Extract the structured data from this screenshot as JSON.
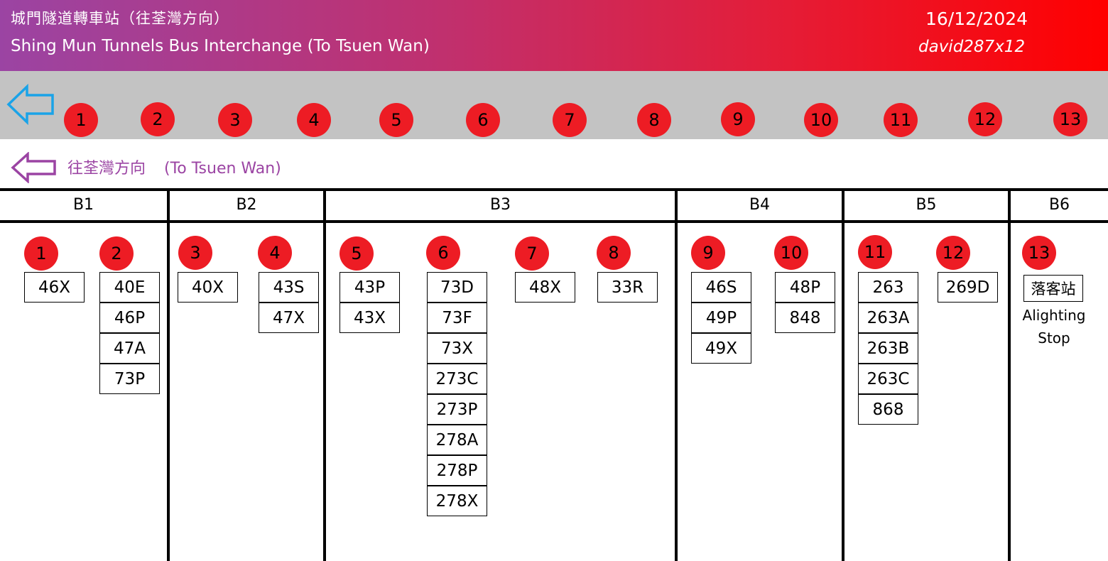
{
  "header": {
    "title_zh": "城門隧道轉車站（往荃灣方向）",
    "title_en": "Shing Mun Tunnels Bus Interchange (To Tsuen Wan)",
    "date": "16/12/2024",
    "author": "david287x12"
  },
  "colors": {
    "header_start": "#9b44a3",
    "header_end": "#ff0000",
    "badge_red": "#ed1c24",
    "strip_gray": "#c3c3c3",
    "strip_arrow_blue": "#1aa3e8",
    "direction_purple": "#9b44a3"
  },
  "stops": [
    "1",
    "2",
    "3",
    "4",
    "5",
    "6",
    "7",
    "8",
    "9",
    "10",
    "11",
    "12",
    "13"
  ],
  "direction": {
    "icon": "left-arrow-icon",
    "text_zh": "往荃灣方向",
    "text_en": "(To Tsuen Wan)"
  },
  "bays": [
    "B1",
    "B2",
    "B3",
    "B4",
    "B5",
    "B6"
  ],
  "stop_routes": [
    {
      "stop": "1",
      "routes": [
        "46X"
      ]
    },
    {
      "stop": "2",
      "routes": [
        "40E",
        "46P",
        "47A",
        "73P"
      ]
    },
    {
      "stop": "3",
      "routes": [
        "40X"
      ]
    },
    {
      "stop": "4",
      "routes": [
        "43S",
        "47X"
      ]
    },
    {
      "stop": "5",
      "routes": [
        "43P",
        "43X"
      ]
    },
    {
      "stop": "6",
      "routes": [
        "73D",
        "73F",
        "73X",
        "273C",
        "273P",
        "278A",
        "278P",
        "278X"
      ]
    },
    {
      "stop": "7",
      "routes": [
        "48X"
      ]
    },
    {
      "stop": "8",
      "routes": [
        "33R"
      ]
    },
    {
      "stop": "9",
      "routes": [
        "46S",
        "49P",
        "49X"
      ]
    },
    {
      "stop": "10",
      "routes": [
        "48P",
        "848"
      ]
    },
    {
      "stop": "11",
      "routes": [
        "263",
        "263A",
        "263B",
        "263C",
        "868"
      ]
    },
    {
      "stop": "12",
      "routes": [
        "269D"
      ]
    },
    {
      "stop": "13",
      "routes": []
    }
  ],
  "alighting": {
    "label_zh": "落客站",
    "label_en_1": "Alighting",
    "label_en_2": "Stop"
  }
}
